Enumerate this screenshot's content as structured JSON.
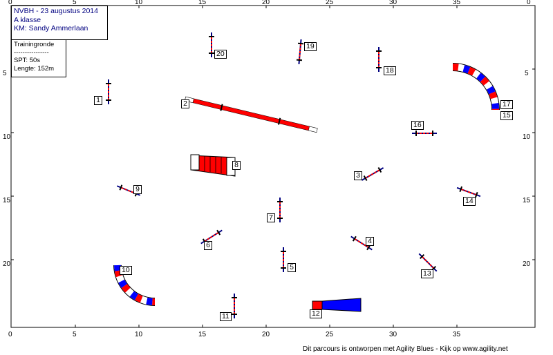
{
  "info": {
    "title": "NVBH - 23 augustus 2014",
    "class": "A klasse",
    "judge": "KM: Sandy Ammerlaan",
    "run": "Trainingronde",
    "divider": "----------------",
    "spt": "SPT:  50s",
    "length": "Lengte: 152m"
  },
  "footer": "Dit parcours is ontworpen met Agility Blues - Kijk op www.agility.net",
  "axes": {
    "x_ticks": [
      "0",
      "5",
      "10",
      "15",
      "20",
      "25",
      "30",
      "35"
    ],
    "y_ticks": [
      "5",
      "10",
      "15",
      "20"
    ],
    "corner": "0"
  },
  "obstacles": [
    {
      "num": "1",
      "type": "hurdle"
    },
    {
      "num": "2",
      "type": "dogwalk"
    },
    {
      "num": "3",
      "type": "hurdle"
    },
    {
      "num": "4",
      "type": "hurdle"
    },
    {
      "num": "5",
      "type": "hurdle"
    },
    {
      "num": "6",
      "type": "hurdle"
    },
    {
      "num": "7",
      "type": "hurdle"
    },
    {
      "num": "8",
      "type": "tire"
    },
    {
      "num": "9",
      "type": "hurdle"
    },
    {
      "num": "10",
      "type": "tunnel"
    },
    {
      "num": "11",
      "type": "hurdle"
    },
    {
      "num": "12",
      "type": "chute"
    },
    {
      "num": "13",
      "type": "hurdle"
    },
    {
      "num": "14",
      "type": "hurdle"
    },
    {
      "num": "15",
      "type": "tunnel"
    },
    {
      "num": "16",
      "type": "hurdle"
    },
    {
      "num": "17",
      "type": "tunnel"
    },
    {
      "num": "18",
      "type": "hurdle"
    },
    {
      "num": "19",
      "type": "hurdle"
    },
    {
      "num": "20",
      "type": "hurdle"
    }
  ],
  "colors": {
    "red": "#ff0000",
    "blue": "#0000ff",
    "navy": "#000080",
    "frame": "#000000"
  }
}
